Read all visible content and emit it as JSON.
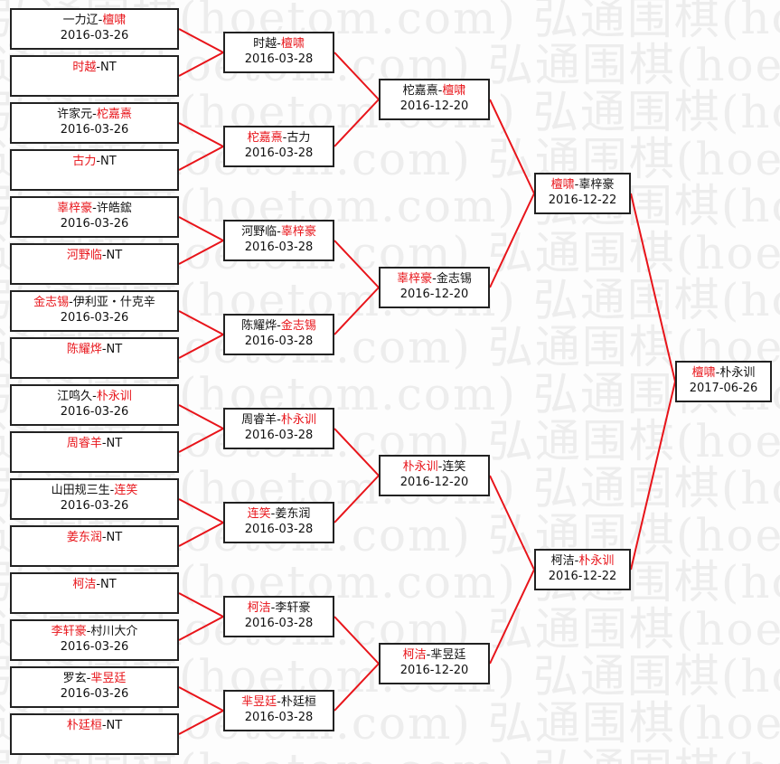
{
  "watermark": "弘通围棋(hoetom.com) 弘通围棋(hoetom.com)",
  "colors": {
    "winner": "#e8141a",
    "line": "#e8141a",
    "text": "#111111"
  },
  "rounds": [
    [
      {
        "parts": [
          {
            "t": "一力辽-",
            "w": false
          },
          {
            "t": "檀啸",
            "w": true
          }
        ],
        "date": "2016-03-26"
      },
      {
        "parts": [
          {
            "t": "时越",
            "w": true
          },
          {
            "t": "-NT",
            "w": false
          }
        ],
        "date": ""
      },
      {
        "parts": [
          {
            "t": "许家元-",
            "w": false
          },
          {
            "t": "柁嘉熹",
            "w": true
          }
        ],
        "date": "2016-03-26"
      },
      {
        "parts": [
          {
            "t": "古力",
            "w": true
          },
          {
            "t": "-NT",
            "w": false
          }
        ],
        "date": ""
      },
      {
        "parts": [
          {
            "t": "辜梓豪",
            "w": true
          },
          {
            "t": "-许皓鋐",
            "w": false
          }
        ],
        "date": "2016-03-26"
      },
      {
        "parts": [
          {
            "t": "河野临",
            "w": true
          },
          {
            "t": "-NT",
            "w": false
          }
        ],
        "date": ""
      },
      {
        "parts": [
          {
            "t": "金志锡",
            "w": true
          },
          {
            "t": "-伊利亚・什克辛",
            "w": false
          }
        ],
        "date": "2016-03-26"
      },
      {
        "parts": [
          {
            "t": "陈耀烨",
            "w": true
          },
          {
            "t": "-NT",
            "w": false
          }
        ],
        "date": ""
      },
      {
        "parts": [
          {
            "t": "江鸣久-",
            "w": false
          },
          {
            "t": "朴永训",
            "w": true
          }
        ],
        "date": "2016-03-26"
      },
      {
        "parts": [
          {
            "t": "周睿羊",
            "w": true
          },
          {
            "t": "-NT",
            "w": false
          }
        ],
        "date": ""
      },
      {
        "parts": [
          {
            "t": "山田规三生-",
            "w": false
          },
          {
            "t": "连笑",
            "w": true
          }
        ],
        "date": "2016-03-26"
      },
      {
        "parts": [
          {
            "t": "姜东润",
            "w": true
          },
          {
            "t": "-NT",
            "w": false
          }
        ],
        "date": ""
      },
      {
        "parts": [
          {
            "t": "柯洁",
            "w": true
          },
          {
            "t": "-NT",
            "w": false
          }
        ],
        "date": ""
      },
      {
        "parts": [
          {
            "t": "李轩豪",
            "w": true
          },
          {
            "t": "-村川大介",
            "w": false
          }
        ],
        "date": "2016-03-26"
      },
      {
        "parts": [
          {
            "t": "罗玄-",
            "w": false
          },
          {
            "t": "芈昱廷",
            "w": true
          }
        ],
        "date": "2016-03-26"
      },
      {
        "parts": [
          {
            "t": "朴廷桓",
            "w": true
          },
          {
            "t": "-NT",
            "w": false
          }
        ],
        "date": ""
      }
    ],
    [
      {
        "parts": [
          {
            "t": "时越-",
            "w": false
          },
          {
            "t": "檀啸",
            "w": true
          }
        ],
        "date": "2016-03-28"
      },
      {
        "parts": [
          {
            "t": "柁嘉熹",
            "w": true
          },
          {
            "t": "-古力",
            "w": false
          }
        ],
        "date": "2016-03-28"
      },
      {
        "parts": [
          {
            "t": "河野临-",
            "w": false
          },
          {
            "t": "辜梓豪",
            "w": true
          }
        ],
        "date": "2016-03-28"
      },
      {
        "parts": [
          {
            "t": "陈耀烨-",
            "w": false
          },
          {
            "t": "金志锡",
            "w": true
          }
        ],
        "date": "2016-03-28"
      },
      {
        "parts": [
          {
            "t": "周睿羊-",
            "w": false
          },
          {
            "t": "朴永训",
            "w": true
          }
        ],
        "date": "2016-03-28"
      },
      {
        "parts": [
          {
            "t": "连笑",
            "w": true
          },
          {
            "t": "-姜东润",
            "w": false
          }
        ],
        "date": "2016-03-28"
      },
      {
        "parts": [
          {
            "t": "柯洁",
            "w": true
          },
          {
            "t": "-李轩豪",
            "w": false
          }
        ],
        "date": "2016-03-28"
      },
      {
        "parts": [
          {
            "t": "芈昱廷",
            "w": true
          },
          {
            "t": "-朴廷桓",
            "w": false
          }
        ],
        "date": "2016-03-28"
      }
    ],
    [
      {
        "parts": [
          {
            "t": "柁嘉熹-",
            "w": false
          },
          {
            "t": "檀啸",
            "w": true
          }
        ],
        "date": "2016-12-20"
      },
      {
        "parts": [
          {
            "t": "辜梓豪",
            "w": true
          },
          {
            "t": "-金志锡",
            "w": false
          }
        ],
        "date": "2016-12-20"
      },
      {
        "parts": [
          {
            "t": "朴永训",
            "w": true
          },
          {
            "t": "-连笑",
            "w": false
          }
        ],
        "date": "2016-12-20"
      },
      {
        "parts": [
          {
            "t": "柯洁",
            "w": true
          },
          {
            "t": "-芈昱廷",
            "w": false
          }
        ],
        "date": "2016-12-20"
      }
    ],
    [
      {
        "parts": [
          {
            "t": "檀啸",
            "w": true
          },
          {
            "t": "-辜梓豪",
            "w": false
          }
        ],
        "date": "2016-12-22"
      },
      {
        "parts": [
          {
            "t": "柯洁-",
            "w": false
          },
          {
            "t": "朴永训",
            "w": true
          }
        ],
        "date": "2016-12-22"
      }
    ],
    [
      {
        "parts": [
          {
            "t": "檀啸",
            "w": true
          },
          {
            "t": "-朴永训",
            "w": false
          }
        ],
        "date": "2017-06-26"
      }
    ]
  ]
}
